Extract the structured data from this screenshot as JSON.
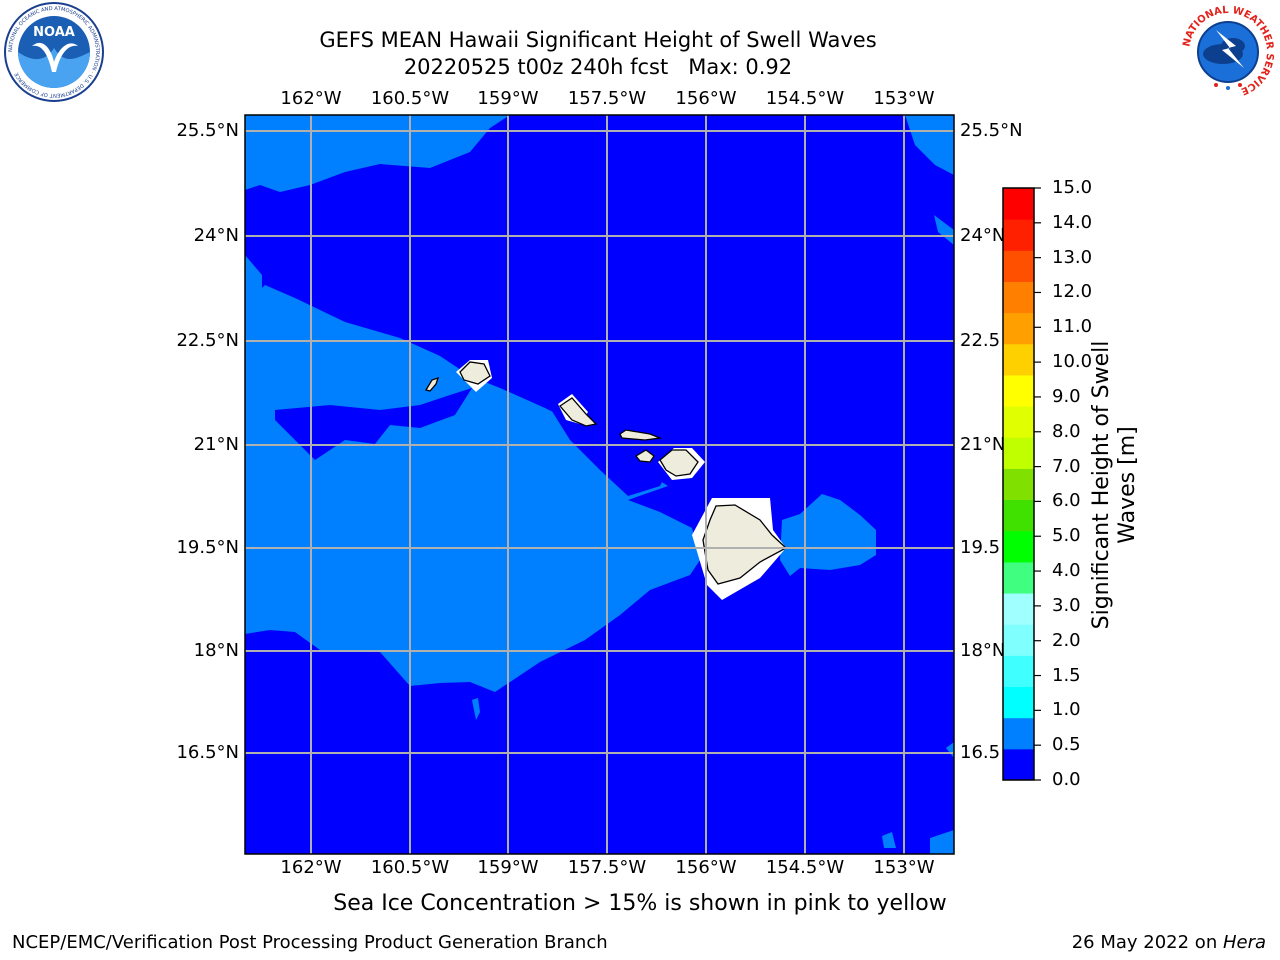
{
  "header": {
    "title_line1": "GEFS MEAN Hawaii Significant Height of Swell Waves",
    "title_line2": "20220525 t00z 240h fcst   Max: 0.92"
  },
  "logos": {
    "noaa_text": "NOAA",
    "noaa_ring_text": "NATIONAL OCEANIC AND ATMOSPHERIC ADMINISTRATION · U.S. DEPARTMENT OF COMMERCE",
    "nws_ring_text": "NATIONAL WEATHER SERVICE"
  },
  "map": {
    "lon_labels": [
      "162°W",
      "160.5°W",
      "159°W",
      "157.5°W",
      "156°W",
      "154.5°W",
      "153°W"
    ],
    "lat_labels_left": [
      "25.5°N",
      "24°N",
      "22.5°N",
      "21°N",
      "19.5°N",
      "18°N",
      "16.5°N"
    ],
    "lat_labels_right": [
      "25.5°N",
      "24°N",
      "22.5",
      "21°N",
      "19.5",
      "18°N",
      "16.5"
    ],
    "colors": {
      "ocean_low": "#0000ff",
      "ocean_mid": "#0080ff",
      "land": "#eeecdc",
      "land_mask": "#ffffff",
      "grid": "#b0b0b0"
    }
  },
  "colorbar": {
    "title_line1": "Significant Height of Swell",
    "title_line2": "Waves [m]",
    "ticks": [
      "15.0",
      "14.0",
      "13.0",
      "12.0",
      "11.0",
      "10.0",
      "9.0",
      "8.0",
      "7.0",
      "6.0",
      "5.0",
      "4.0",
      "3.0",
      "2.0",
      "1.5",
      "1.0",
      "0.5",
      "0.0"
    ],
    "colors": [
      "#0000ff",
      "#0080ff",
      "#00ffff",
      "#40ffff",
      "#80ffff",
      "#a0ffff",
      "#40ff80",
      "#00ff00",
      "#40e000",
      "#80e000",
      "#c0ff00",
      "#e0ff00",
      "#ffff00",
      "#ffd000",
      "#ffa000",
      "#ff8000",
      "#ff5000",
      "#ff2000",
      "#ff0000"
    ]
  },
  "note": "Sea Ice Concentration > 15% is shown in pink to yellow",
  "footer": {
    "left": "NCEP/EMC/Verification Post Processing Product Generation Branch",
    "right_date": "26 May 2022 on ",
    "right_machine": "Hera"
  }
}
